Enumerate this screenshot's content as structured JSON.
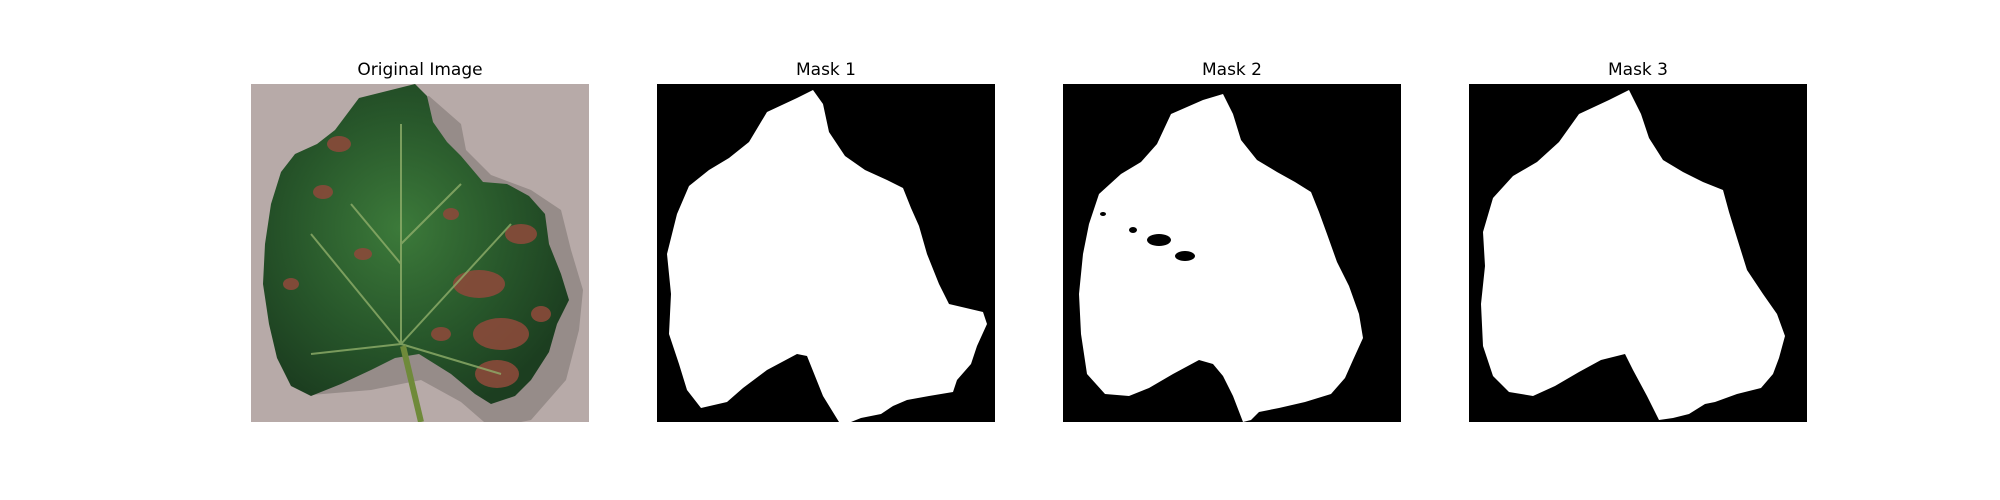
{
  "figure": {
    "panels": [
      {
        "title": "Original Image",
        "content": "leaf-photo"
      },
      {
        "title": "Mask 1",
        "content": "binary-mask"
      },
      {
        "title": "Mask 2",
        "content": "binary-mask"
      },
      {
        "title": "Mask 3",
        "content": "binary-mask"
      }
    ]
  },
  "colors": {
    "mask_background": "#000000",
    "mask_foreground": "#ffffff",
    "photo_background": "#b7aaa8",
    "leaf_green": "#2c5a2c",
    "lesion_brown": "#8a4a3a"
  }
}
